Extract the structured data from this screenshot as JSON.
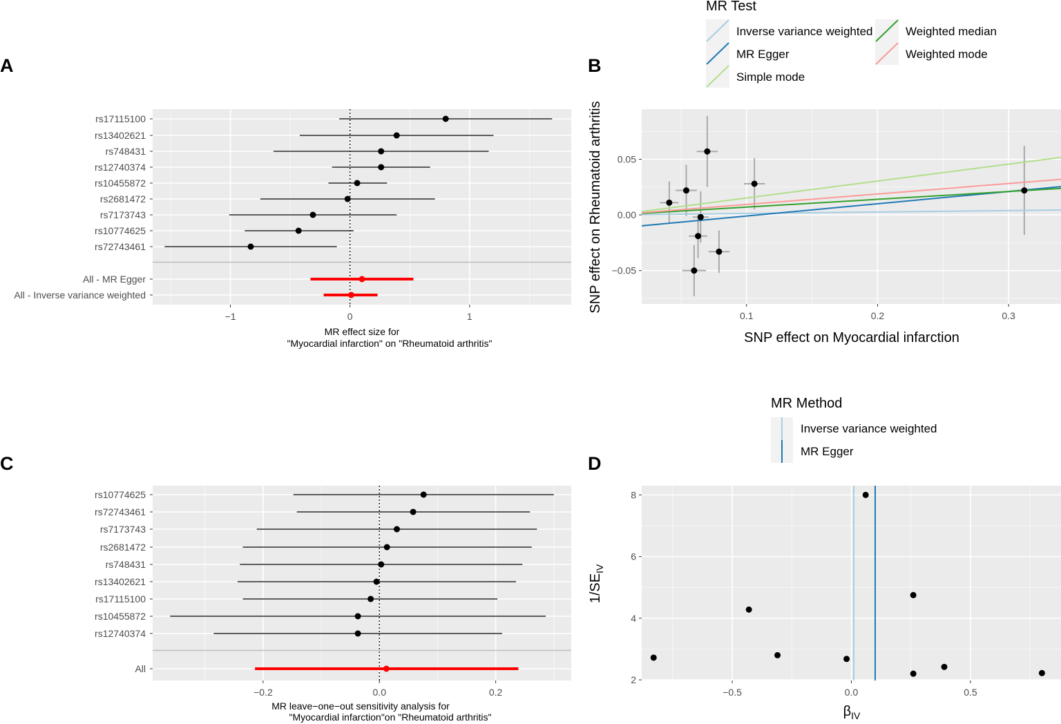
{
  "panels": {
    "a": "A",
    "b": "B",
    "c": "C",
    "d": "D"
  },
  "chart_data": [
    {
      "panel": "A",
      "type": "forest",
      "snps": [
        "rs17115100",
        "rs13402621",
        "rs748431",
        "rs12740374",
        "rs10455872",
        "rs2681472",
        "rs7173743",
        "rs10774625",
        "rs72743461"
      ],
      "estimates": [
        0.8,
        0.39,
        0.26,
        0.26,
        0.06,
        -0.02,
        -0.31,
        -0.43,
        -0.83
      ],
      "lower": [
        -0.09,
        -0.42,
        -0.64,
        -0.15,
        -0.18,
        -0.75,
        -1.01,
        -0.88,
        -1.55
      ],
      "upper": [
        1.69,
        1.2,
        1.16,
        0.67,
        0.31,
        0.71,
        0.39,
        0.03,
        -0.11
      ],
      "summary": [
        {
          "label": "All - MR Egger",
          "estimate": 0.1,
          "lower": -0.33,
          "upper": 0.53
        },
        {
          "label": "All - Inverse variance weighted",
          "estimate": 0.01,
          "lower": -0.22,
          "upper": 0.23
        }
      ],
      "xlim": [
        -1.65,
        1.85
      ],
      "xticks": [
        -1,
        0,
        1
      ],
      "xticklabels": [
        "−1",
        "0",
        "1"
      ],
      "xlabel_line1": "MR effect size for",
      "xlabel_line2": "\"Myocardial infarction\" on \"Rheumatoid arthritis\""
    },
    {
      "panel": "B",
      "type": "scatter",
      "xlabel": "SNP effect on Myocardial infarction",
      "ylabel": "SNP effect on Rheumatoid arthritis",
      "xlim": [
        0.02,
        0.34
      ],
      "ylim": [
        -0.08,
        0.095
      ],
      "xticks": [
        0.1,
        0.2,
        0.3
      ],
      "xticklabels": [
        "0.1",
        "0.2",
        "0.3"
      ],
      "yticks": [
        -0.05,
        0.0,
        0.05
      ],
      "yticklabels": [
        "−0.05",
        "0.00",
        "0.05"
      ],
      "points": [
        {
          "x": 0.07,
          "y": 0.057,
          "xse": 0.008,
          "yse": 0.032
        },
        {
          "x": 0.106,
          "y": 0.028,
          "xse": 0.008,
          "yse": 0.023
        },
        {
          "x": 0.054,
          "y": 0.022,
          "xse": 0.008,
          "yse": 0.023
        },
        {
          "x": 0.041,
          "y": 0.011,
          "xse": 0.007,
          "yse": 0.019
        },
        {
          "x": 0.065,
          "y": -0.002,
          "xse": 0.006,
          "yse": 0.023
        },
        {
          "x": 0.063,
          "y": -0.019,
          "xse": 0.007,
          "yse": 0.02
        },
        {
          "x": 0.079,
          "y": -0.033,
          "xse": 0.008,
          "yse": 0.019
        },
        {
          "x": 0.06,
          "y": -0.05,
          "xse": 0.009,
          "yse": 0.023
        },
        {
          "x": 0.312,
          "y": 0.022,
          "xse": 0.002,
          "yse": 0.04
        }
      ],
      "lines": [
        {
          "name": "Inverse variance weighted",
          "color": "#a6cee3",
          "intercept": 0.0,
          "slope": 0.013
        },
        {
          "name": "MR Egger",
          "color": "#1f78b4",
          "intercept": -0.012,
          "slope": 0.11
        },
        {
          "name": "Simple mode",
          "color": "#b2df8a",
          "intercept": 0.0,
          "slope": 0.152
        },
        {
          "name": "Weighted median",
          "color": "#33a02c",
          "intercept": 0.0,
          "slope": 0.07
        },
        {
          "name": "Weighted mode",
          "color": "#fb9a99",
          "intercept": 0.0,
          "slope": 0.094
        }
      ],
      "legend_title": "MR Test",
      "legend_position": "top"
    },
    {
      "panel": "C",
      "type": "forest",
      "snps": [
        "rs10774625",
        "rs72743461",
        "rs7173743",
        "rs2681472",
        "rs748431",
        "rs13402621",
        "rs17115100",
        "rs10455872",
        "rs12740374"
      ],
      "estimates": [
        0.076,
        0.058,
        0.03,
        0.013,
        0.003,
        -0.005,
        -0.015,
        -0.037,
        -0.037
      ],
      "lower": [
        -0.148,
        -0.142,
        -0.211,
        -0.235,
        -0.24,
        -0.244,
        -0.235,
        -0.36,
        -0.285
      ],
      "upper": [
        0.3,
        0.259,
        0.271,
        0.262,
        0.246,
        0.235,
        0.203,
        0.286,
        0.211
      ],
      "summary": [
        {
          "label": "All",
          "estimate": 0.012,
          "lower": -0.214,
          "upper": 0.239
        }
      ],
      "xlim": [
        -0.39,
        0.33
      ],
      "xticks": [
        -0.2,
        0.0,
        0.2
      ],
      "xticklabels": [
        "−0.2",
        "0.0",
        "0.2"
      ],
      "xlabel_line1": "MR leave−one−out sensitivity analysis for",
      "xlabel_line2": "\"Myocardial infarction\"on \"Rheumatoid arthritis\""
    },
    {
      "panel": "D",
      "type": "funnel",
      "xlabel": "β",
      "xlabel_sub": "IV",
      "ylabel": "1/SE",
      "ylabel_sub": "IV",
      "xlim": [
        -0.88,
        0.88
      ],
      "ylim": [
        1.98,
        8.3
      ],
      "xticks": [
        -0.5,
        0.0,
        0.5
      ],
      "xticklabels": [
        "−0.5",
        "0.0",
        "0.5"
      ],
      "yticks": [
        2,
        4,
        6,
        8
      ],
      "yticklabels": [
        "2",
        "4",
        "6",
        "8"
      ],
      "points": [
        {
          "x": 0.06,
          "y": 8.0
        },
        {
          "x": 0.26,
          "y": 4.75
        },
        {
          "x": -0.43,
          "y": 4.28
        },
        {
          "x": -0.31,
          "y": 2.8
        },
        {
          "x": -0.02,
          "y": 2.68
        },
        {
          "x": -0.83,
          "y": 2.72
        },
        {
          "x": 0.39,
          "y": 2.42
        },
        {
          "x": 0.26,
          "y": 2.2
        },
        {
          "x": 0.8,
          "y": 2.22
        }
      ],
      "vlines": [
        {
          "name": "Inverse variance weighted",
          "color": "#a6cee3",
          "x": 0.01
        },
        {
          "name": "MR Egger",
          "color": "#1f78b4",
          "x": 0.1
        }
      ],
      "legend_title": "MR Method",
      "legend_position": "top"
    }
  ]
}
